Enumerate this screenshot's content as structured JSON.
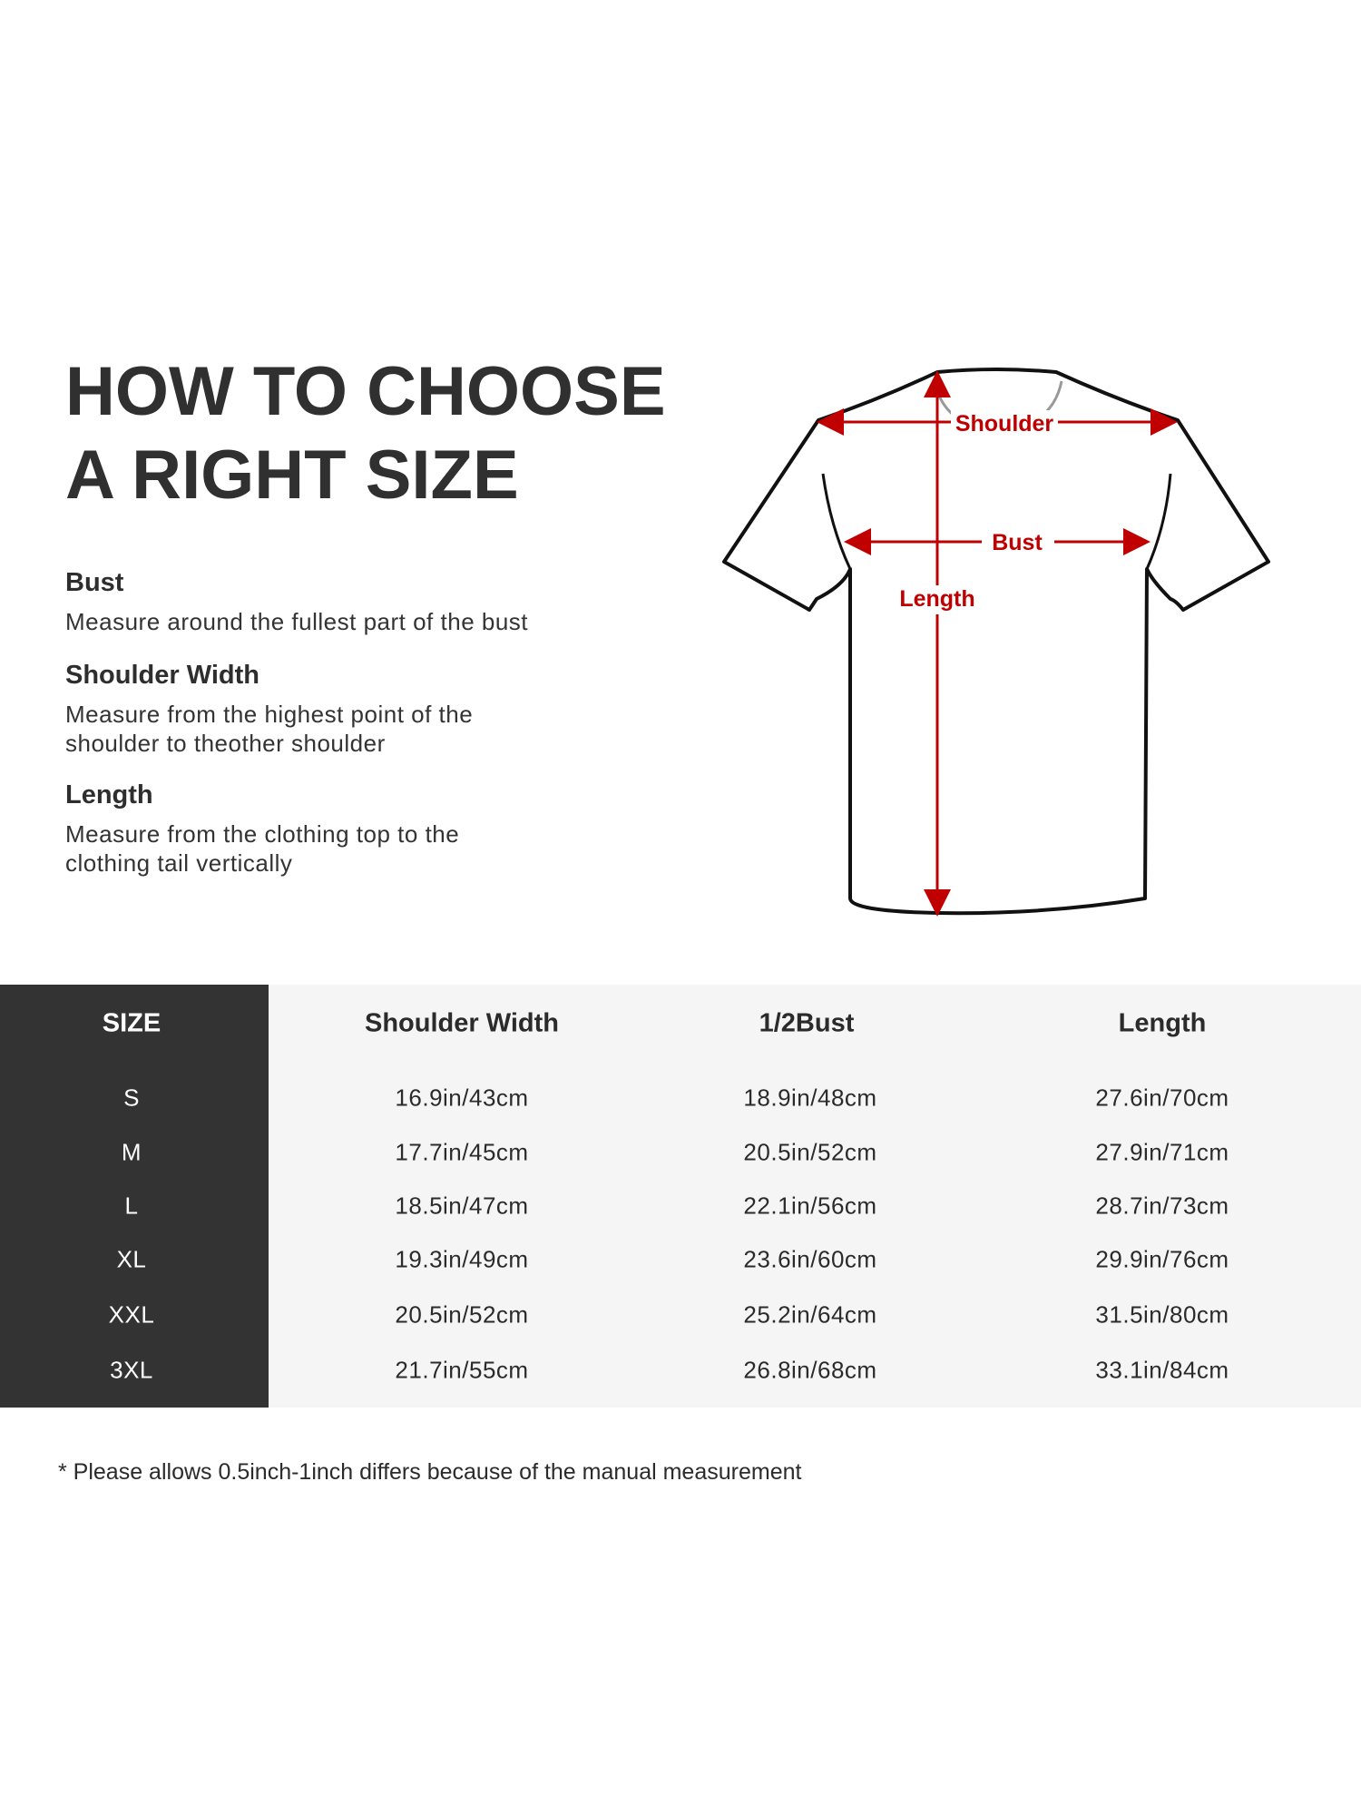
{
  "title": {
    "line1": "HOW TO CHOOSE",
    "line2": "A RIGHT SIZE"
  },
  "guide": [
    {
      "heading": "Bust",
      "lines": [
        "Measure around the fullest part of the bust"
      ]
    },
    {
      "heading": "Shoulder Width",
      "lines": [
        "Measure from the highest point of the",
        "shoulder to theother shoulder"
      ]
    },
    {
      "heading": "Length",
      "lines": [
        "Measure from the clothing top to the",
        "clothing tail vertically"
      ]
    }
  ],
  "diagram": {
    "labels": {
      "shoulder": "Shoulder",
      "bust": "Bust",
      "length": "Length"
    },
    "arrow_color": "#c00000",
    "outline_color": "#111111"
  },
  "table": {
    "headers": [
      "SIZE",
      "Shoulder Width",
      "1/2Bust",
      "Length"
    ],
    "rows": [
      [
        "S",
        "16.9in/43cm",
        "18.9in/48cm",
        "27.6in/70cm"
      ],
      [
        "M",
        "17.7in/45cm",
        "20.5in/52cm",
        "27.9in/71cm"
      ],
      [
        "L",
        "18.5in/47cm",
        "22.1in/56cm",
        "28.7in/73cm"
      ],
      [
        "XL",
        "19.3in/49cm",
        "23.6in/60cm",
        "29.9in/76cm"
      ],
      [
        "XXL",
        "20.5in/52cm",
        "25.2in/64cm",
        "31.5in/80cm"
      ],
      [
        "3XL",
        "21.7in/55cm",
        "26.8in/68cm",
        "33.1in/84cm"
      ]
    ],
    "size_column_color": "#333333",
    "body_color": "#f5f5f5"
  },
  "footnote": "* Please allows 0.5inch-1inch differs because of the  manual measurement"
}
